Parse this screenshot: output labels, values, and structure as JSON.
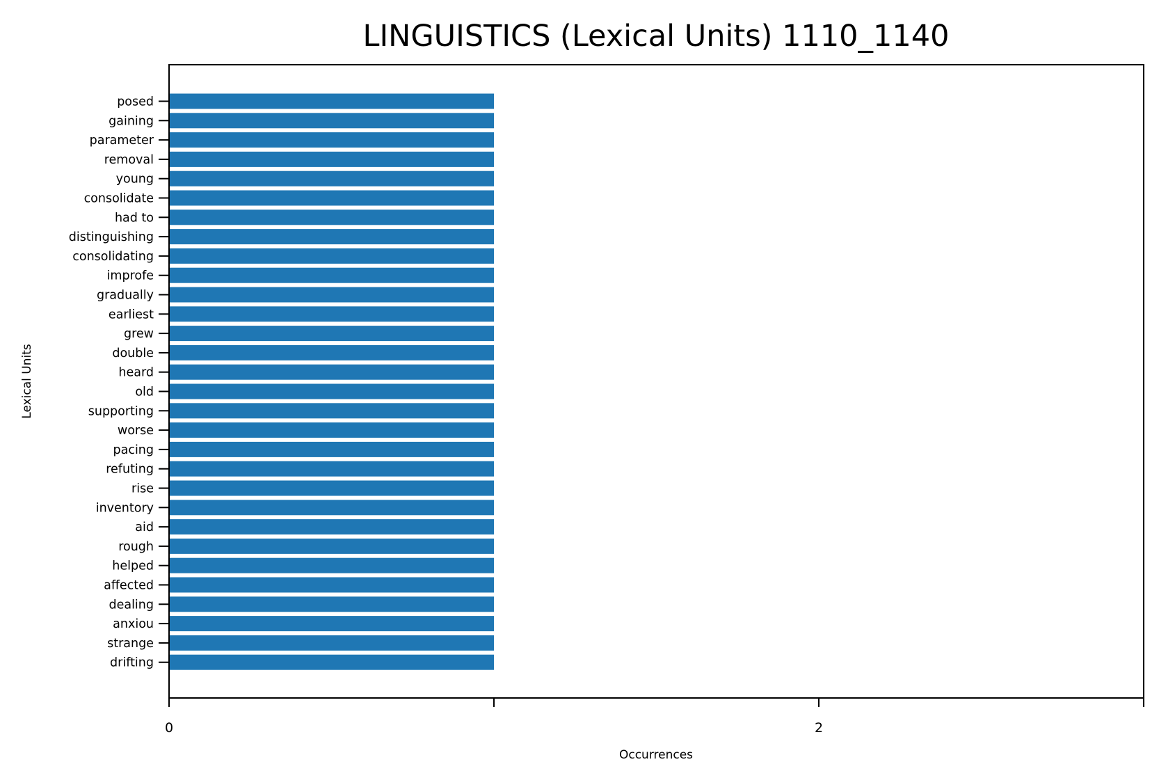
{
  "chart_data": {
    "type": "bar",
    "orientation": "horizontal",
    "title": "LINGUISTICS (Lexical Units) 1110_1140",
    "xlabel": "Occurrences",
    "ylabel": "Lexical Units",
    "categories": [
      "posed",
      "gaining",
      "parameter",
      "removal",
      "young",
      "consolidate",
      "had to",
      "distinguishing",
      "consolidating",
      "improfe",
      "gradually",
      "earliest",
      "grew",
      "double",
      "heard",
      "old",
      "supporting",
      "worse",
      "pacing",
      "refuting",
      "rise",
      "inventory",
      "aid",
      "rough",
      "helped",
      "affected",
      "dealing",
      "anxiou",
      "strange",
      "drifting"
    ],
    "values": [
      1,
      1,
      1,
      1,
      1,
      1,
      1,
      1,
      1,
      1,
      1,
      1,
      1,
      1,
      1,
      1,
      1,
      1,
      1,
      1,
      1,
      1,
      1,
      1,
      1,
      1,
      1,
      1,
      1,
      1
    ],
    "xlim": [
      0,
      3
    ],
    "xticks": [
      0,
      1,
      2,
      3
    ],
    "xtick_labels": [
      "0",
      "",
      "2",
      ""
    ],
    "bar_color": "#1f77b4",
    "grid": false,
    "legend": "none"
  }
}
